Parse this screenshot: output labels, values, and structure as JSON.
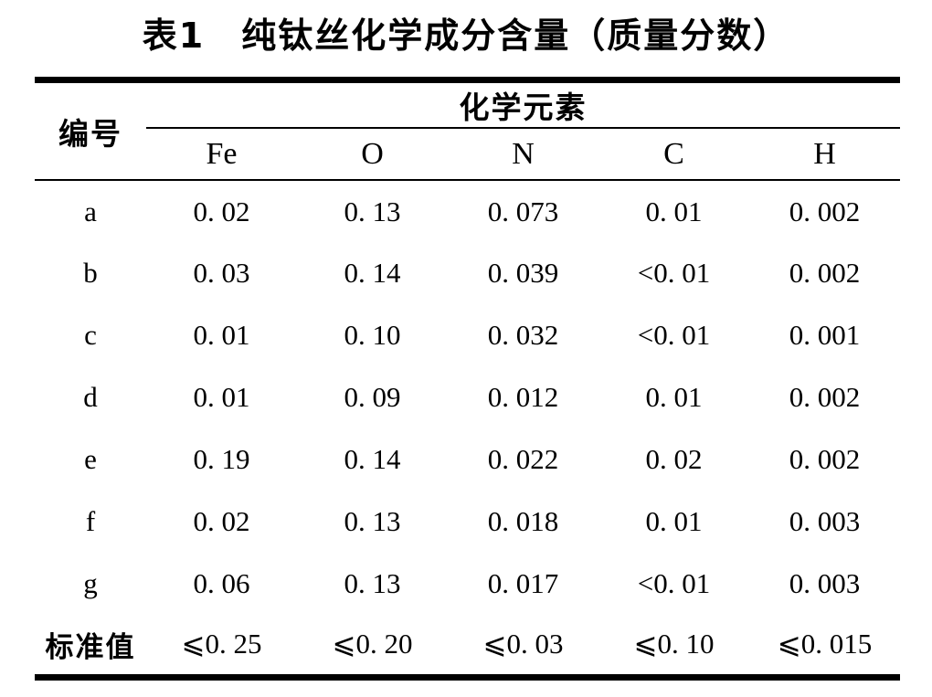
{
  "page": {
    "title": "表1　纯钛丝化学成分含量（质量分数）"
  },
  "table": {
    "row_header_label": "编号",
    "group_header": "化学元素",
    "columns": [
      "Fe",
      "O",
      "N",
      "C",
      "H"
    ],
    "rows": [
      {
        "label": "a",
        "values": [
          "0. 02",
          "0. 13",
          "0. 073",
          "0. 01",
          "0. 002"
        ]
      },
      {
        "label": "b",
        "values": [
          "0. 03",
          "0. 14",
          "0. 039",
          "<0. 01",
          "0. 002"
        ]
      },
      {
        "label": "c",
        "values": [
          "0. 01",
          "0. 10",
          "0. 032",
          "<0. 01",
          "0. 001"
        ]
      },
      {
        "label": "d",
        "values": [
          "0. 01",
          "0. 09",
          "0. 012",
          "0. 01",
          "0. 002"
        ]
      },
      {
        "label": "e",
        "values": [
          "0. 19",
          "0. 14",
          "0. 022",
          "0. 02",
          "0. 002"
        ]
      },
      {
        "label": "f",
        "values": [
          "0. 02",
          "0. 13",
          "0. 018",
          "0. 01",
          "0. 003"
        ]
      },
      {
        "label": "g",
        "values": [
          "0. 06",
          "0. 13",
          "0. 017",
          "<0. 01",
          "0. 003"
        ]
      },
      {
        "label": "标准值",
        "values": [
          "⩽0. 25",
          "⩽0. 20",
          "⩽0. 03",
          "⩽0. 10",
          "⩽0. 015"
        ]
      }
    ],
    "text_color": "#000000",
    "background_color": "#ffffff"
  }
}
